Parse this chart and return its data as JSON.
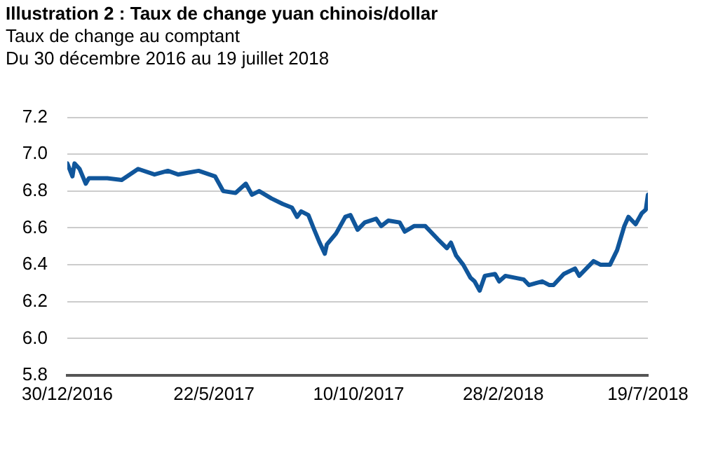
{
  "chart_data": {
    "type": "line",
    "title": "Illustration 2 : Taux de change yuan chinois/dollar",
    "subtitle": "Taux de change au comptant\nDu 30 décembre 2016 au 19 juillet 2018",
    "xlim": [
      "2016-12-30",
      "2018-07-19"
    ],
    "xticks": [
      {
        "value": "2016-12-30",
        "label": "30/12/2016"
      },
      {
        "value": "2017-05-22",
        "label": "22/5/2017"
      },
      {
        "value": "2017-10-10",
        "label": "10/10/2017"
      },
      {
        "value": "2018-02-28",
        "label": "28/2/2018"
      },
      {
        "value": "2018-07-19",
        "label": "19/7/2018"
      }
    ],
    "ylim": [
      5.8,
      7.2
    ],
    "yticks": [
      5.8,
      {
        "value": 6,
        "label": "6.0"
      },
      6.2,
      6.4,
      6.6,
      6.8,
      {
        "value": 7,
        "label": "7.0"
      },
      7.2
    ],
    "grid": "y",
    "legend": false,
    "marker": "none",
    "line_style": "solid",
    "series": [
      {
        "color": "#10569b",
        "x": [
          "2016-12-30",
          "2017-01-04",
          "2017-01-06",
          "2017-01-11",
          "2017-01-17",
          "2017-01-20",
          "2017-02-07",
          "2017-02-21",
          "2017-03-09",
          "2017-03-25",
          "2017-04-07",
          "2017-04-17",
          "2017-05-07",
          "2017-05-23",
          "2017-05-31",
          "2017-06-12",
          "2017-06-22",
          "2017-06-28",
          "2017-07-05",
          "2017-07-17",
          "2017-07-28",
          "2017-08-06",
          "2017-08-11",
          "2017-08-15",
          "2017-08-22",
          "2017-08-27",
          "2017-09-02",
          "2017-09-07",
          "2017-09-09",
          "2017-09-18",
          "2017-09-27",
          "2017-10-02",
          "2017-10-09",
          "2017-10-16",
          "2017-10-27",
          "2017-11-01",
          "2017-11-08",
          "2017-11-19",
          "2017-11-24",
          "2017-12-03",
          "2017-12-14",
          "2017-12-26",
          "2018-01-04",
          "2018-01-08",
          "2018-01-13",
          "2018-01-20",
          "2018-01-27",
          "2018-01-31",
          "2018-02-05",
          "2018-02-10",
          "2018-02-20",
          "2018-02-24",
          "2018-03-02",
          "2018-03-20",
          "2018-03-25",
          "2018-04-07",
          "2018-04-14",
          "2018-04-18",
          "2018-04-28",
          "2018-05-09",
          "2018-05-13",
          "2018-05-20",
          "2018-05-27",
          "2018-06-03",
          "2018-06-12",
          "2018-06-19",
          "2018-06-26",
          "2018-06-30",
          "2018-07-07",
          "2018-07-13",
          "2018-07-17",
          "2018-07-19"
        ],
        "values": [
          6.95,
          6.88,
          6.95,
          6.92,
          6.84,
          6.87,
          6.87,
          6.86,
          6.92,
          6.89,
          6.91,
          6.89,
          6.91,
          6.88,
          6.8,
          6.79,
          6.84,
          6.78,
          6.8,
          6.76,
          6.73,
          6.71,
          6.66,
          6.69,
          6.67,
          6.6,
          6.52,
          6.46,
          6.51,
          6.57,
          6.66,
          6.67,
          6.59,
          6.63,
          6.65,
          6.61,
          6.64,
          6.63,
          6.58,
          6.61,
          6.61,
          6.54,
          6.49,
          6.52,
          6.45,
          6.4,
          6.33,
          6.31,
          6.26,
          6.34,
          6.35,
          6.31,
          6.34,
          6.32,
          6.29,
          6.31,
          6.29,
          6.29,
          6.35,
          6.38,
          6.34,
          6.38,
          6.42,
          6.4,
          6.4,
          6.48,
          6.61,
          6.66,
          6.62,
          6.68,
          6.7,
          6.78
        ]
      }
    ]
  }
}
